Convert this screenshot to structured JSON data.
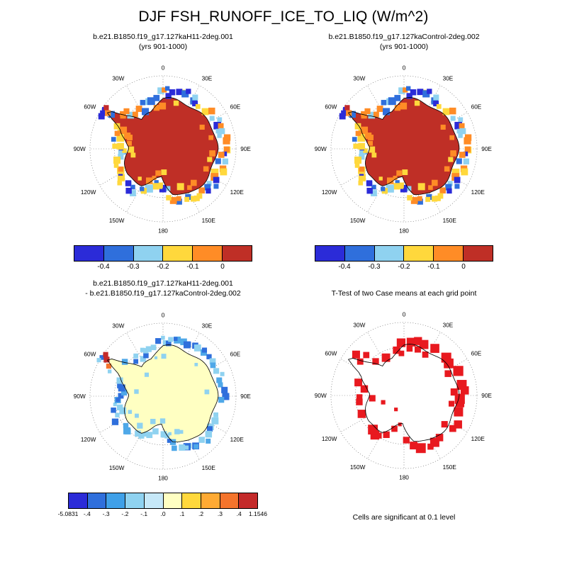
{
  "page_title": "DJF FSH_RUNOFF_ICE_TO_LIQ (W/m^2)",
  "footnote": "Cells are significant at 0.1 level",
  "chart_data": {
    "type": "heatmap",
    "projection": "south polar stereographic (Antarctica)",
    "season": "DJF",
    "variable": "FSH_RUNOFF_ICE_TO_LIQ",
    "units": "W/m^2",
    "meridian_labels": [
      "0",
      "30E",
      "60E",
      "90E",
      "120E",
      "150E",
      "180",
      "150W",
      "120W",
      "90W",
      "60W",
      "30W"
    ],
    "panels": [
      {
        "name": "case1",
        "title_lines": [
          "b.e21.B1850.f19_g17.127kaH11-2deg.001",
          "(yrs 901-1000)"
        ],
        "style": "field",
        "continent_fill": "#bf2f26",
        "fringe_palette": [
          "#2b2bd8",
          "#2f6fdc",
          "#8fd2f0",
          "#ffd83c",
          "#ff8c26"
        ],
        "inner_palette": [
          "#ff8c26",
          "#ffd83c"
        ]
      },
      {
        "name": "case2",
        "title_lines": [
          "b.e21.B1850.f19_g17.127kaControl-2deg.002",
          "(yrs 901-1000)"
        ],
        "style": "field",
        "continent_fill": "#bf2f26",
        "fringe_palette": [
          "#2b2bd8",
          "#2f6fdc",
          "#8fd2f0",
          "#ffd83c",
          "#ff8c26"
        ],
        "inner_palette": [
          "#ff8c26",
          "#ffd83c"
        ]
      },
      {
        "name": "difference",
        "title_lines": [
          "b.e21.B1850.f19_g17.127kaH11-2deg.001",
          "- b.e21.B1850.f19_g17.127kaControl-2deg.002"
        ],
        "style": "diff",
        "continent_fill": "#ffffc2",
        "fringe_palette": [
          "#8fd2f0",
          "#4fa8e8",
          "#2f6fdc"
        ],
        "peninsula_extreme_cells": [
          [
            303,
            92,
            "#c42a2a",
            8
          ],
          [
            299,
            85,
            "#f4742c",
            7
          ],
          [
            306,
            97,
            "#c42a2a",
            7
          ]
        ]
      },
      {
        "name": "ttest",
        "title_lines": [
          "T-Test of two Case means at each grid point"
        ],
        "style": "ttest",
        "continent_fill": "#ffffff",
        "cell_color": "#e8191f"
      }
    ],
    "colorbars": {
      "cases": {
        "colors": [
          "#2b2bd8",
          "#2f6fdc",
          "#8fd2f0",
          "#ffd83c",
          "#ff8c26",
          "#bf2f26"
        ],
        "labels": [
          "-0.4",
          "-0.3",
          "-0.2",
          "-0.1",
          "0"
        ],
        "label_mode": "interior"
      },
      "diff": {
        "colors": [
          "#2b2bd8",
          "#2f6fdc",
          "#3fa0e8",
          "#8fd2f0",
          "#c6e8f8",
          "#ffffc2",
          "#ffd83c",
          "#ffaa33",
          "#f4742c",
          "#c42a2a"
        ],
        "labels": [
          "-5.0831",
          "-.4",
          "-.3",
          "-.2",
          "-.1",
          ".0",
          ".1",
          ".2",
          ".3",
          ".4",
          "1.1546"
        ],
        "label_mode": "edges"
      }
    }
  }
}
